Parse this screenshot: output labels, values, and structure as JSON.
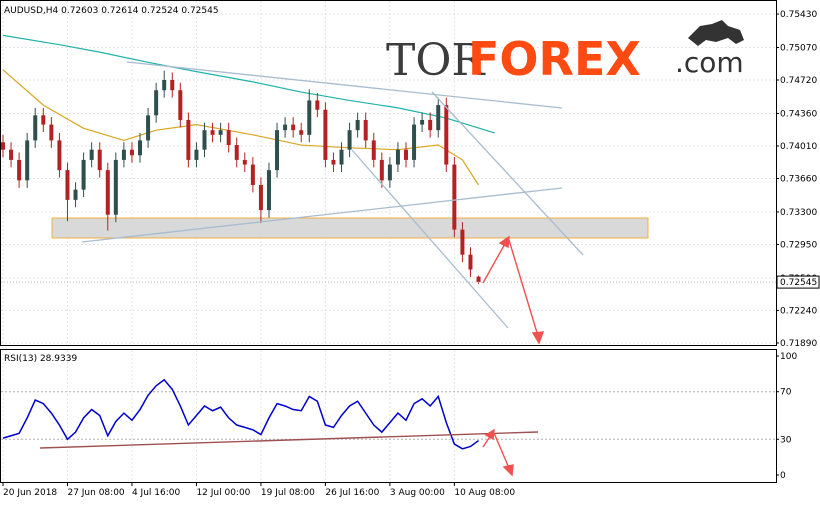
{
  "chart_data": [
    {
      "type": "candlestick",
      "title": "AUDUSD,H4 0.72603 0.72614 0.72524 0.72545",
      "categories": [
        "20 Jun 2018",
        null,
        null,
        null,
        null,
        null,
        null,
        null,
        "27 Jun 08:00",
        null,
        null,
        null,
        null,
        null,
        null,
        null,
        "4 Jul 16:00",
        null,
        null,
        null,
        null,
        null,
        null,
        null,
        "12 Jul 00:00",
        null,
        null,
        null,
        null,
        null,
        null,
        null,
        "19 Jul 08:00",
        null,
        null,
        null,
        null,
        null,
        null,
        null,
        "26 Jul 16:00",
        null,
        null,
        null,
        null,
        null,
        null,
        null,
        "3 Aug 00:00",
        null,
        null,
        null,
        null,
        null,
        null,
        null,
        "10 Aug 08:00",
        null,
        null,
        null
      ],
      "open": [
        0.7405,
        0.7397,
        0.7386,
        0.7364,
        0.7407,
        0.7434,
        0.7424,
        0.7407,
        0.7375,
        0.7343,
        0.7354,
        0.7386,
        0.7397,
        0.7375,
        0.7327,
        0.7386,
        0.7397,
        0.7391,
        0.7407,
        0.7434,
        0.7461,
        0.7472,
        0.7461,
        0.7429,
        0.7386,
        0.7397,
        0.7418,
        0.7413,
        0.7418,
        0.7402,
        0.7386,
        0.7381,
        0.7359,
        0.7332,
        0.7375,
        0.7418,
        0.7424,
        0.7418,
        0.7413,
        0.745,
        0.744,
        0.7386,
        0.7381,
        0.7397,
        0.7418,
        0.7429,
        0.7407,
        0.7386,
        0.7364,
        0.7381,
        0.7397,
        0.7386,
        0.7424,
        0.7429,
        0.7418,
        0.7445,
        0.7381,
        0.7311,
        0.7284,
        0.72603
      ],
      "high": [
        0.7413,
        0.7405,
        0.7394,
        0.7415,
        0.7442,
        0.7442,
        0.7432,
        0.7415,
        0.7383,
        0.7362,
        0.7394,
        0.7405,
        0.7405,
        0.7383,
        0.7394,
        0.7405,
        0.7405,
        0.7415,
        0.7442,
        0.7469,
        0.7482,
        0.748,
        0.7469,
        0.7437,
        0.7405,
        0.7426,
        0.7426,
        0.7426,
        0.7426,
        0.741,
        0.7394,
        0.7389,
        0.7367,
        0.7383,
        0.7426,
        0.7432,
        0.7432,
        0.7426,
        0.7462,
        0.7458,
        0.7448,
        0.7394,
        0.7405,
        0.7426,
        0.7437,
        0.7437,
        0.7415,
        0.7394,
        0.7389,
        0.7405,
        0.7405,
        0.7432,
        0.7437,
        0.7437,
        0.7453,
        0.7453,
        0.7389,
        0.7319,
        0.7292,
        0.72614
      ],
      "low": [
        0.7389,
        0.7378,
        0.7356,
        0.7356,
        0.7399,
        0.7416,
        0.7399,
        0.7367,
        0.732,
        0.7335,
        0.7346,
        0.7378,
        0.7367,
        0.731,
        0.7319,
        0.7378,
        0.7383,
        0.7383,
        0.7399,
        0.7426,
        0.7453,
        0.7453,
        0.7421,
        0.7378,
        0.7378,
        0.7389,
        0.7405,
        0.7405,
        0.7394,
        0.7378,
        0.7373,
        0.7351,
        0.7318,
        0.7324,
        0.7367,
        0.741,
        0.741,
        0.7405,
        0.7405,
        0.7432,
        0.7378,
        0.7373,
        0.7373,
        0.7389,
        0.741,
        0.7399,
        0.7378,
        0.7356,
        0.7356,
        0.7373,
        0.7378,
        0.7378,
        0.7416,
        0.741,
        0.741,
        0.7373,
        0.7303,
        0.7276,
        0.726,
        0.72524
      ],
      "close": [
        0.7397,
        0.7386,
        0.7364,
        0.7407,
        0.7434,
        0.7424,
        0.7407,
        0.7375,
        0.7343,
        0.7354,
        0.7386,
        0.7397,
        0.7375,
        0.7327,
        0.7386,
        0.7397,
        0.7391,
        0.7407,
        0.7434,
        0.7461,
        0.7472,
        0.7461,
        0.7429,
        0.7386,
        0.7397,
        0.7418,
        0.7413,
        0.7418,
        0.7402,
        0.7386,
        0.7381,
        0.7359,
        0.7332,
        0.7375,
        0.7418,
        0.7424,
        0.7418,
        0.7413,
        0.745,
        0.744,
        0.7386,
        0.7381,
        0.7397,
        0.7418,
        0.7429,
        0.7407,
        0.7386,
        0.7364,
        0.7381,
        0.7397,
        0.7386,
        0.7424,
        0.7429,
        0.7418,
        0.7445,
        0.7381,
        0.7311,
        0.7284,
        0.7268,
        0.72545
      ],
      "up_color": "#2f4f4f",
      "down_color": "#b22222",
      "overlays": [
        {
          "color": "#20b2aa",
          "x": [
            0,
            7,
            12,
            18,
            24,
            31,
            37,
            43,
            49,
            55,
            61
          ],
          "values": [
            0.752,
            0.751,
            0.7502,
            0.7491,
            0.7481,
            0.747,
            0.7459,
            0.745,
            0.7442,
            0.7431,
            0.7415
          ]
        },
        {
          "color": "#daa520",
          "x": [
            0,
            5,
            10,
            15,
            19,
            24,
            31,
            37,
            43,
            49,
            54,
            57,
            59
          ],
          "values": [
            0.7483,
            0.7445,
            0.742,
            0.7407,
            0.7418,
            0.7424,
            0.7413,
            0.7402,
            0.7399,
            0.7397,
            0.7402,
            0.7386,
            0.7359
          ]
        }
      ],
      "last_price": 0.72545,
      "ylim": [
        0.71868,
        0.75581
      ],
      "yticks": [
        {
          "value": 0.7543,
          "label": "0.75430"
        },
        {
          "value": 0.7507,
          "label": "0.75070"
        },
        {
          "value": 0.7472,
          "label": "0.74720"
        },
        {
          "value": 0.7436,
          "label": "0.74360"
        },
        {
          "value": 0.7401,
          "label": "0.74010"
        },
        {
          "value": 0.7366,
          "label": "0.73660"
        },
        {
          "value": 0.733,
          "label": "0.73300"
        },
        {
          "value": 0.7295,
          "label": "0.72950"
        },
        {
          "value": 0.7259,
          "label": "0.72590"
        },
        {
          "value": 0.7224,
          "label": "0.72240"
        },
        {
          "value": 0.7189,
          "label": "0.71890"
        }
      ],
      "grid": true
    },
    {
      "type": "line",
      "title": "RSI(13) 28.9339",
      "values": [
        31,
        33,
        35,
        48,
        63,
        60,
        52,
        42,
        30,
        36,
        48,
        55,
        50,
        33,
        45,
        52,
        46,
        55,
        67,
        75,
        80,
        72,
        58,
        42,
        50,
        58,
        54,
        57,
        48,
        42,
        40,
        38,
        34,
        48,
        60,
        58,
        55,
        54,
        66,
        62,
        42,
        40,
        50,
        58,
        62,
        52,
        42,
        36,
        44,
        52,
        46,
        60,
        64,
        58,
        66,
        44,
        26,
        22,
        24,
        28.9339
      ],
      "color": "#0000cd",
      "ylim": [
        -5.9,
        105.9
      ],
      "yticks": [
        100,
        70,
        30,
        0
      ],
      "levels": [
        70,
        30
      ]
    }
  ],
  "logo": {
    "part1": "TOR",
    "part2": "FOREX",
    "part3": ".com"
  }
}
